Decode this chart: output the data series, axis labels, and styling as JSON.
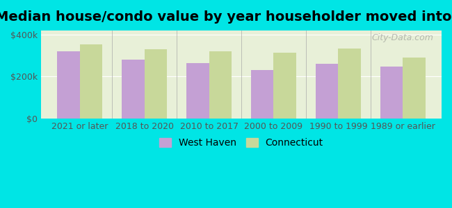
{
  "title": "Median house/condo value by year householder moved into unit",
  "categories": [
    "2021 or later",
    "2018 to 2020",
    "2010 to 2017",
    "2000 to 2009",
    "1990 to 1999",
    "1989 or earlier"
  ],
  "west_haven": [
    320000,
    280000,
    265000,
    230000,
    262000,
    248000
  ],
  "connecticut": [
    355000,
    330000,
    320000,
    315000,
    335000,
    290000
  ],
  "west_haven_color": "#c4a0d4",
  "connecticut_color": "#c8d89a",
  "background_color": "#00e5e5",
  "plot_bg_color": "#e8f0d8",
  "ylim": [
    0,
    420000
  ],
  "yticks": [
    0,
    200000,
    400000
  ],
  "ytick_labels": [
    "$0",
    "$200k",
    "$400k"
  ],
  "legend_west_haven": "West Haven",
  "legend_connecticut": "Connecticut",
  "title_fontsize": 14,
  "tick_fontsize": 9,
  "legend_fontsize": 10,
  "watermark_text": "City-Data.com",
  "bar_width": 0.35
}
